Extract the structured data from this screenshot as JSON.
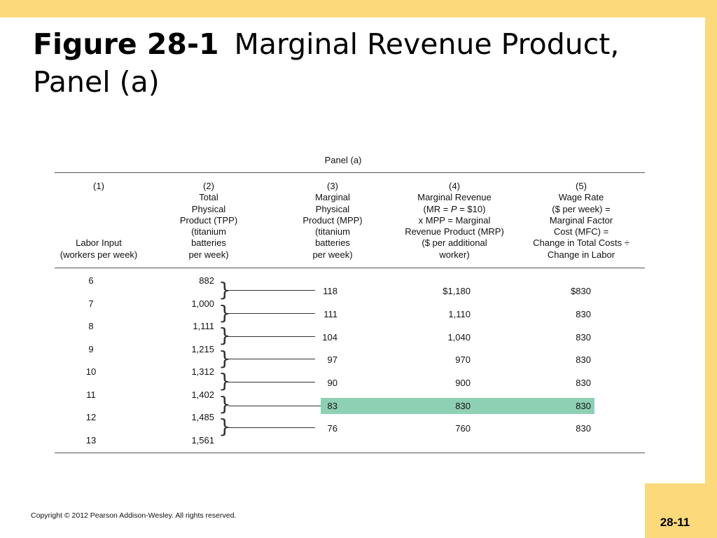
{
  "slide": {
    "title_bold": "Figure 28-1",
    "title_line1": "Marginal Revenue Product,",
    "title_line2": "Panel (a)",
    "copyright": "Copyright © 2012 Pearson Addison-Wesley. All rights reserved.",
    "slide_number": "28-11"
  },
  "table": {
    "panel_title": "Panel (a)",
    "headers": [
      {
        "num": "(1)",
        "lines": [
          "",
          "",
          "",
          "",
          "Labor Input",
          "(workers per week)"
        ]
      },
      {
        "num": "(2)",
        "lines": [
          "Total",
          "Physical",
          "Product (TPP)",
          "(titanium",
          "batteries",
          "per week)"
        ]
      },
      {
        "num": "(3)",
        "lines": [
          "Marginal",
          "Physical",
          "Product (MPP)",
          "(titanium",
          "batteries",
          "per week)"
        ]
      },
      {
        "num": "(4)",
        "lines": [
          "Marginal Revenue",
          "(MR = P = $10)",
          "x MPP = Marginal",
          "Revenue Product (MRP)",
          "($ per additional",
          "worker)"
        ]
      },
      {
        "num": "(5)",
        "lines": [
          "Wage Rate",
          "($ per week) =",
          "Marginal Factor",
          "Cost (MFC) =",
          "Change in Total Costs ÷",
          "Change in Labor"
        ]
      }
    ],
    "rows": [
      {
        "labor": "6",
        "tpp": "882"
      },
      {
        "labor": "7",
        "tpp": "1,000"
      },
      {
        "labor": "8",
        "tpp": "1,111"
      },
      {
        "labor": "9",
        "tpp": "1,215"
      },
      {
        "labor": "10",
        "tpp": "1,312"
      },
      {
        "labor": "11",
        "tpp": "1,402"
      },
      {
        "labor": "12",
        "tpp": "1,485"
      },
      {
        "labor": "13",
        "tpp": "1,561"
      }
    ],
    "marginal_rows": [
      {
        "mpp": "118",
        "mrp": "$1,180",
        "mfc": "$830"
      },
      {
        "mpp": "111",
        "mrp": "1,110",
        "mfc": "830"
      },
      {
        "mpp": "104",
        "mrp": "1,040",
        "mfc": "830"
      },
      {
        "mpp": "97",
        "mrp": "970",
        "mfc": "830"
      },
      {
        "mpp": "90",
        "mrp": "900",
        "mfc": "830"
      },
      {
        "mpp": "83",
        "mrp": "830",
        "mfc": "830"
      },
      {
        "mpp": "76",
        "mrp": "760",
        "mfc": "830"
      }
    ],
    "highlight_color": "#8ed0b4",
    "accent_color": "#fcd97a"
  }
}
